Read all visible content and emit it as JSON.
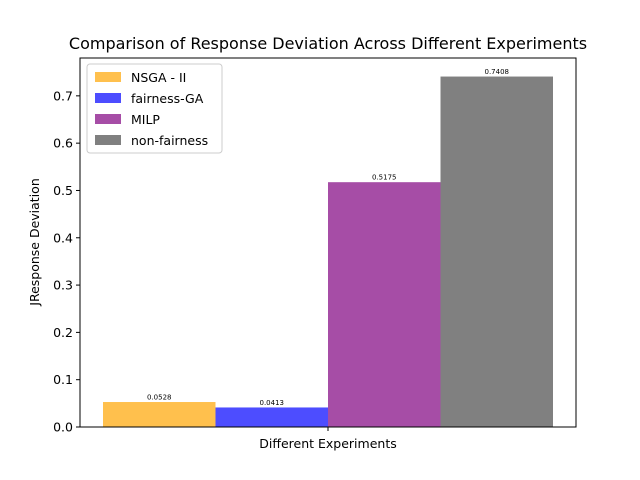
{
  "chart_data": {
    "type": "bar",
    "title": "Comparison of Response Deviation Across Different Experiments",
    "xlabel": "Different Experiments",
    "ylabel": "JResponse Deviation",
    "ylim": [
      0,
      0.78
    ],
    "yticks": [
      0.0,
      0.1,
      0.2,
      0.3,
      0.4,
      0.5,
      0.6,
      0.7
    ],
    "ytick_labels": [
      "0.0",
      "0.1",
      "0.2",
      "0.3",
      "0.4",
      "0.5",
      "0.6",
      "0.7"
    ],
    "grid": false,
    "legend_position": "top-left",
    "series": [
      {
        "name": "NSGA - II",
        "value": 0.0528,
        "label": "0.0528",
        "color": "#FFC04D"
      },
      {
        "name": "fairness-GA",
        "value": 0.0413,
        "label": "0.0413",
        "color": "#4D4DFF"
      },
      {
        "name": "MILP",
        "value": 0.5175,
        "label": "0.5175",
        "color": "#A64DA6"
      },
      {
        "name": "non-fairness",
        "value": 0.7408,
        "label": "0.7408",
        "color": "#808080"
      }
    ]
  }
}
